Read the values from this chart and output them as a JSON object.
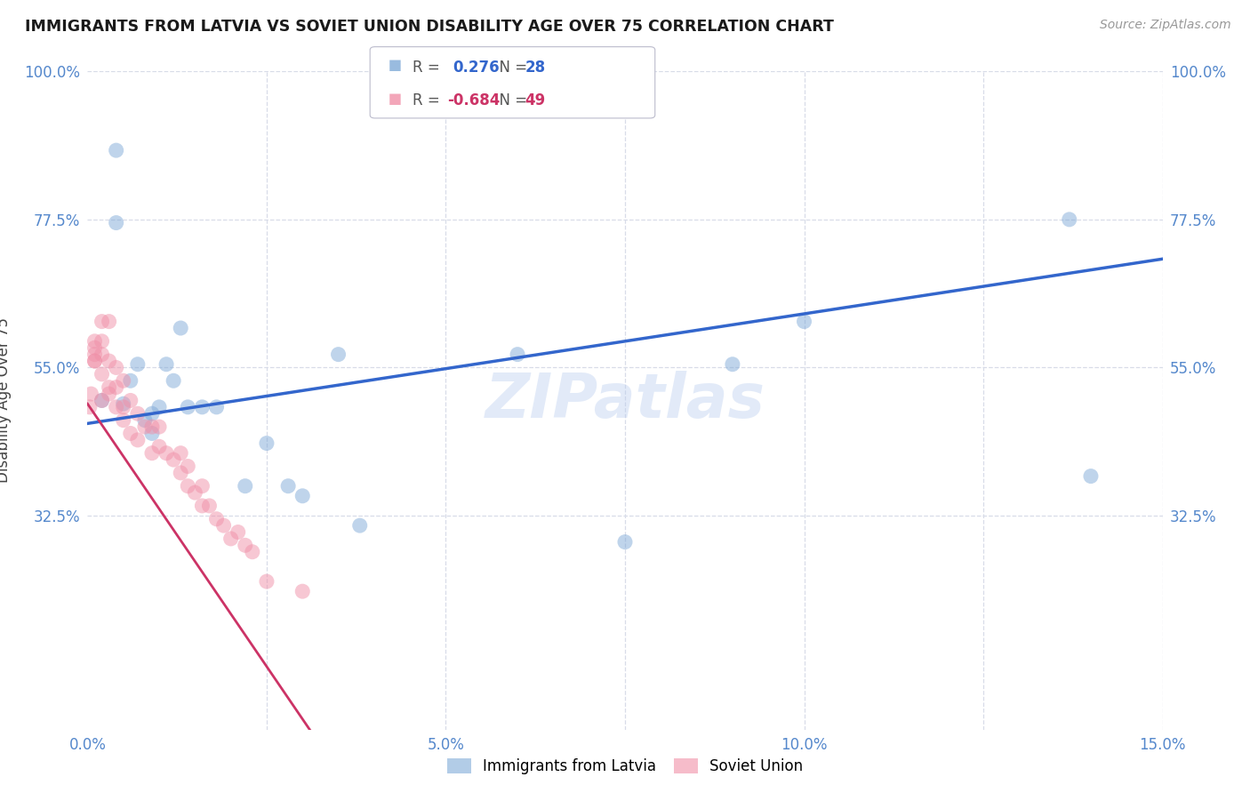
{
  "title": "IMMIGRANTS FROM LATVIA VS SOVIET UNION DISABILITY AGE OVER 75 CORRELATION CHART",
  "source": "Source: ZipAtlas.com",
  "ylabel": "Disability Age Over 75",
  "xlim": [
    0.0,
    0.15
  ],
  "ylim": [
    0.0,
    1.0
  ],
  "xticks": [
    0.0,
    0.025,
    0.05,
    0.075,
    0.1,
    0.125,
    0.15
  ],
  "xticklabels": [
    "0.0%",
    "",
    "5.0%",
    "",
    "10.0%",
    "",
    "15.0%"
  ],
  "yticks": [
    0.325,
    0.55,
    0.775,
    1.0
  ],
  "yticklabels": [
    "32.5%",
    "55.0%",
    "77.5%",
    "100.0%"
  ],
  "grid_color": "#d8dce8",
  "background_color": "#ffffff",
  "watermark": "ZIPatlas",
  "latvia_color": "#80aad8",
  "soviet_color": "#f090a8",
  "latvia_label": "Immigrants from Latvia",
  "soviet_label": "Soviet Union",
  "latvia_R": "0.276",
  "latvia_N": "28",
  "soviet_R": "-0.684",
  "soviet_N": "49",
  "trend_blue": "#3366cc",
  "trend_pink": "#cc3366",
  "latvia_x": [
    0.002,
    0.004,
    0.004,
    0.005,
    0.006,
    0.007,
    0.008,
    0.009,
    0.009,
    0.01,
    0.011,
    0.012,
    0.013,
    0.014,
    0.016,
    0.018,
    0.022,
    0.025,
    0.028,
    0.03,
    0.035,
    0.038,
    0.06,
    0.075,
    0.09,
    0.1,
    0.137,
    0.14
  ],
  "latvia_y": [
    0.5,
    0.88,
    0.77,
    0.495,
    0.53,
    0.555,
    0.47,
    0.45,
    0.48,
    0.49,
    0.555,
    0.53,
    0.61,
    0.49,
    0.49,
    0.49,
    0.37,
    0.435,
    0.37,
    0.355,
    0.57,
    0.31,
    0.57,
    0.285,
    0.555,
    0.62,
    0.775,
    0.385
  ],
  "soviet_x": [
    0.0003,
    0.0005,
    0.001,
    0.001,
    0.001,
    0.001,
    0.001,
    0.002,
    0.002,
    0.002,
    0.002,
    0.002,
    0.003,
    0.003,
    0.003,
    0.003,
    0.004,
    0.004,
    0.004,
    0.005,
    0.005,
    0.005,
    0.006,
    0.006,
    0.007,
    0.007,
    0.008,
    0.009,
    0.009,
    0.01,
    0.01,
    0.011,
    0.012,
    0.013,
    0.013,
    0.014,
    0.014,
    0.015,
    0.016,
    0.016,
    0.017,
    0.018,
    0.019,
    0.02,
    0.021,
    0.022,
    0.023,
    0.025,
    0.03
  ],
  "soviet_y": [
    0.49,
    0.51,
    0.56,
    0.56,
    0.57,
    0.58,
    0.59,
    0.5,
    0.54,
    0.57,
    0.59,
    0.62,
    0.51,
    0.52,
    0.56,
    0.62,
    0.49,
    0.52,
    0.55,
    0.47,
    0.49,
    0.53,
    0.45,
    0.5,
    0.44,
    0.48,
    0.46,
    0.42,
    0.46,
    0.43,
    0.46,
    0.42,
    0.41,
    0.39,
    0.42,
    0.37,
    0.4,
    0.36,
    0.34,
    0.37,
    0.34,
    0.32,
    0.31,
    0.29,
    0.3,
    0.28,
    0.27,
    0.225,
    0.21
  ],
  "blue_line_x0": 0.0,
  "blue_line_y0": 0.465,
  "blue_line_x1": 0.15,
  "blue_line_y1": 0.715,
  "pink_line_x0": 0.0,
  "pink_line_y0": 0.495,
  "pink_line_x1": 0.031,
  "pink_line_y1": 0.0
}
